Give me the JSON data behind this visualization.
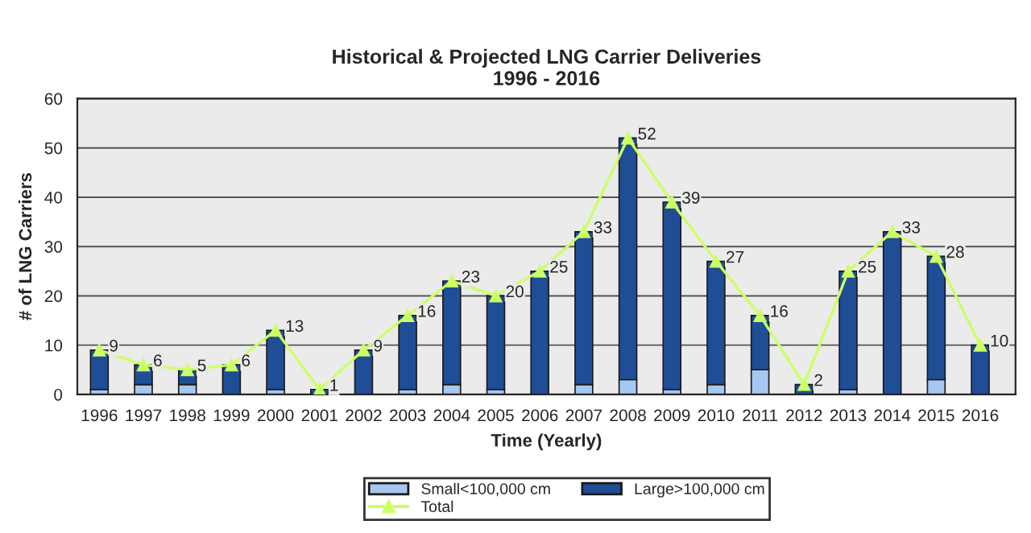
{
  "chart_data": {
    "type": "bar",
    "title": "Historical & Projected LNG Carrier Deliveries\n1996 - 2016",
    "xlabel": "Time (Yearly)",
    "ylabel": "# of LNG Carriers",
    "categories": [
      "1996",
      "1997",
      "1998",
      "1999",
      "2000",
      "2001",
      "2002",
      "2003",
      "2004",
      "2005",
      "2006",
      "2007",
      "2008",
      "2009",
      "2010",
      "2011",
      "2012",
      "2013",
      "2014",
      "2015",
      "2016"
    ],
    "stacked": true,
    "series": [
      {
        "name": "Small<100,000 cm",
        "color": "#a6c8f0",
        "values": [
          1,
          2,
          2,
          0,
          1,
          0,
          0,
          1,
          2,
          1,
          0,
          2,
          3,
          1,
          2,
          5,
          0,
          1,
          0,
          3,
          0
        ]
      },
      {
        "name": "Large>100,000 cm",
        "color": "#1f4e96",
        "values": [
          8,
          4,
          3,
          6,
          12,
          1,
          9,
          15,
          21,
          19,
          25,
          31,
          49,
          38,
          25,
          11,
          2,
          24,
          33,
          25,
          10
        ]
      },
      {
        "name": "Total",
        "type": "line",
        "color": "#ccff66",
        "marker": "triangle",
        "values": [
          9,
          6,
          5,
          6,
          13,
          1,
          9,
          16,
          23,
          20,
          25,
          33,
          52,
          39,
          27,
          16,
          2,
          25,
          33,
          28,
          10
        ],
        "value_labels": [
          "9",
          "6",
          "5",
          "6",
          "13",
          "1",
          "9",
          "16",
          "23",
          "20",
          "25",
          "33",
          "52",
          "39",
          "27",
          "16",
          "2",
          "25",
          "33",
          "28",
          "10"
        ]
      }
    ],
    "ylim": [
      0,
      60
    ],
    "yticks": [
      0,
      10,
      20,
      30,
      40,
      50,
      60
    ],
    "grid": "y",
    "legend": "bottom"
  }
}
